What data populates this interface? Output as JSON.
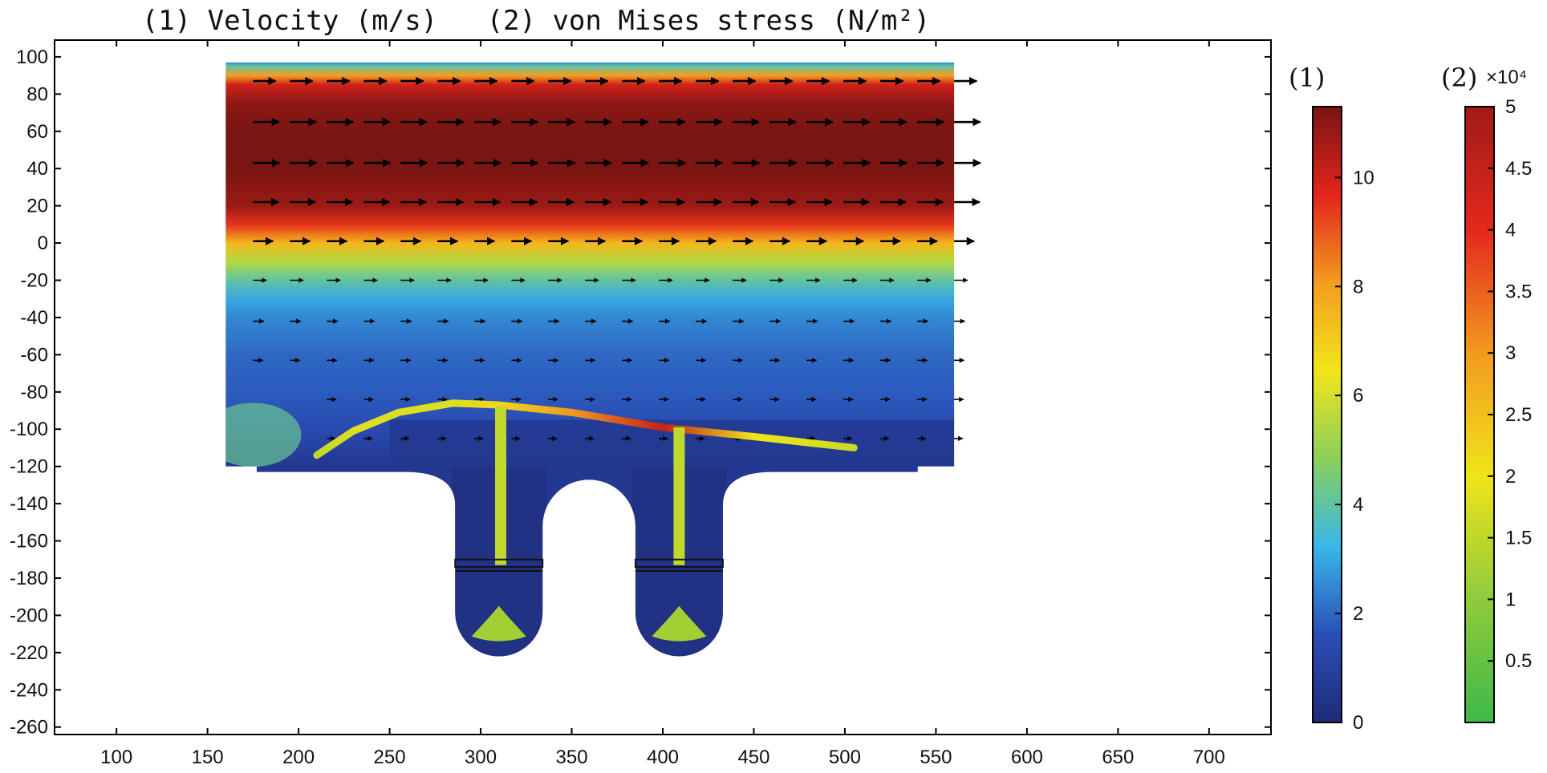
{
  "chart_data": {
    "type": "heatmap",
    "title": "(1) Velocity (m/s)   (2) von Mises stress (N/m²)",
    "x_ticks": [
      "100",
      "150",
      "200",
      "250",
      "300",
      "350",
      "400",
      "450",
      "500",
      "550",
      "600",
      "650",
      "700"
    ],
    "x_tick_values": [
      100,
      150,
      200,
      250,
      300,
      350,
      400,
      450,
      500,
      550,
      600,
      650,
      700
    ],
    "y_ticks": [
      "100",
      "80",
      "60",
      "40",
      "20",
      "0",
      "-20",
      "-40",
      "-60",
      "-80",
      "-100",
      "-120",
      "-140",
      "-160",
      "-180",
      "-200",
      "-220",
      "-240",
      "-260"
    ],
    "y_tick_values": [
      100,
      80,
      60,
      40,
      20,
      0,
      -20,
      -40,
      -60,
      -80,
      -100,
      -120,
      -140,
      -160,
      -180,
      -200,
      -220,
      -240,
      -260
    ],
    "xlim": [
      66,
      734
    ],
    "ylim": [
      -264,
      109
    ],
    "grid": false,
    "fields": [
      {
        "id": "velocity",
        "colorbar_title": "(1)",
        "range": [
          0,
          11.3
        ],
        "ticks": [
          "0",
          "2",
          "4",
          "6",
          "8",
          "10"
        ],
        "tick_values": [
          0,
          2,
          4,
          6,
          8,
          10
        ],
        "colormap": "rainbow",
        "stops": [
          "#1f2a78",
          "#2a4fb8",
          "#3ab7e8",
          "#8ad05a",
          "#f2e51a",
          "#f39c1f",
          "#e3241c",
          "#7a1512"
        ]
      },
      {
        "id": "von_mises_stress",
        "colorbar_title": "(2)",
        "multiplier": "×10⁴",
        "range": [
          0,
          5
        ],
        "ticks": [
          "0.5",
          "1",
          "1.5",
          "2",
          "2.5",
          "3",
          "3.5",
          "4",
          "4.5",
          "5"
        ],
        "tick_values": [
          0.5,
          1,
          1.5,
          2,
          2.5,
          3,
          3.5,
          4,
          4.5,
          5
        ],
        "colormap": "green-yellow-red",
        "stops": [
          "#3fb84a",
          "#8fcb3b",
          "#f0e41a",
          "#f29a1f",
          "#e4281d",
          "#a11b18"
        ]
      }
    ],
    "velocity_profile": {
      "y": [
        97,
        95,
        90,
        85,
        75,
        60,
        40,
        20,
        10,
        0,
        -10,
        -20,
        -30,
        -40,
        -60,
        -80,
        -100,
        -120
      ],
      "speed": [
        2.5,
        4,
        8,
        10,
        11,
        11.3,
        11.3,
        10.8,
        9.5,
        7.5,
        5.5,
        4,
        3,
        2.5,
        2,
        1.8,
        1.4,
        0.6
      ]
    },
    "vectors": {
      "rows_y": [
        87,
        65,
        43,
        22,
        1,
        -20,
        -42,
        -63,
        -84,
        -105
      ],
      "x_start": 175,
      "x_end": 560,
      "columns": 20
    },
    "domain_outline": {
      "channel": {
        "x": [
          160,
          560
        ],
        "y": [
          -120,
          97
        ]
      },
      "base_plate": {
        "x": [
          177,
          540
        ],
        "y": [
          -123,
          -120
        ]
      },
      "cavities": [
        {
          "x_center": 310,
          "half_width": 24,
          "y_top": -120,
          "y_bottom": -222
        },
        {
          "x_center": 409,
          "half_width": 24,
          "y_top": -120,
          "y_bottom": -222
        }
      ],
      "ridge_between": {
        "x_center": 360,
        "top_y": -125
      }
    },
    "structure": {
      "flap_top": [
        [
          210,
          -114
        ],
        [
          230,
          -101
        ],
        [
          255,
          -91
        ],
        [
          285,
          -86
        ],
        [
          310,
          -87
        ],
        [
          350,
          -91
        ],
        [
          400,
          -99
        ],
        [
          450,
          -104
        ],
        [
          505,
          -110
        ]
      ],
      "flap_stress": [
        1.5,
        1.8,
        1.8,
        1.8,
        2.2,
        3.0,
        4.5,
        2.0,
        1.6
      ],
      "rods": [
        {
          "x": 311,
          "y_top": -88,
          "y_bottom": -173,
          "stress": 1.5
        },
        {
          "x": 409,
          "y_top": -99,
          "y_bottom": -173,
          "stress": 1.5
        }
      ],
      "pistons": [
        {
          "x_center": 310,
          "y_top": -170,
          "y_bottom": -174
        },
        {
          "x_center": 409,
          "y_top": -170,
          "y_bottom": -174
        }
      ],
      "bulbs": [
        {
          "x_center": 310,
          "y_top": -195,
          "y_bottom": -213,
          "stress": 1.2
        },
        {
          "x_center": 409,
          "y_top": -195,
          "y_bottom": -213,
          "stress": 1.2
        }
      ]
    }
  }
}
